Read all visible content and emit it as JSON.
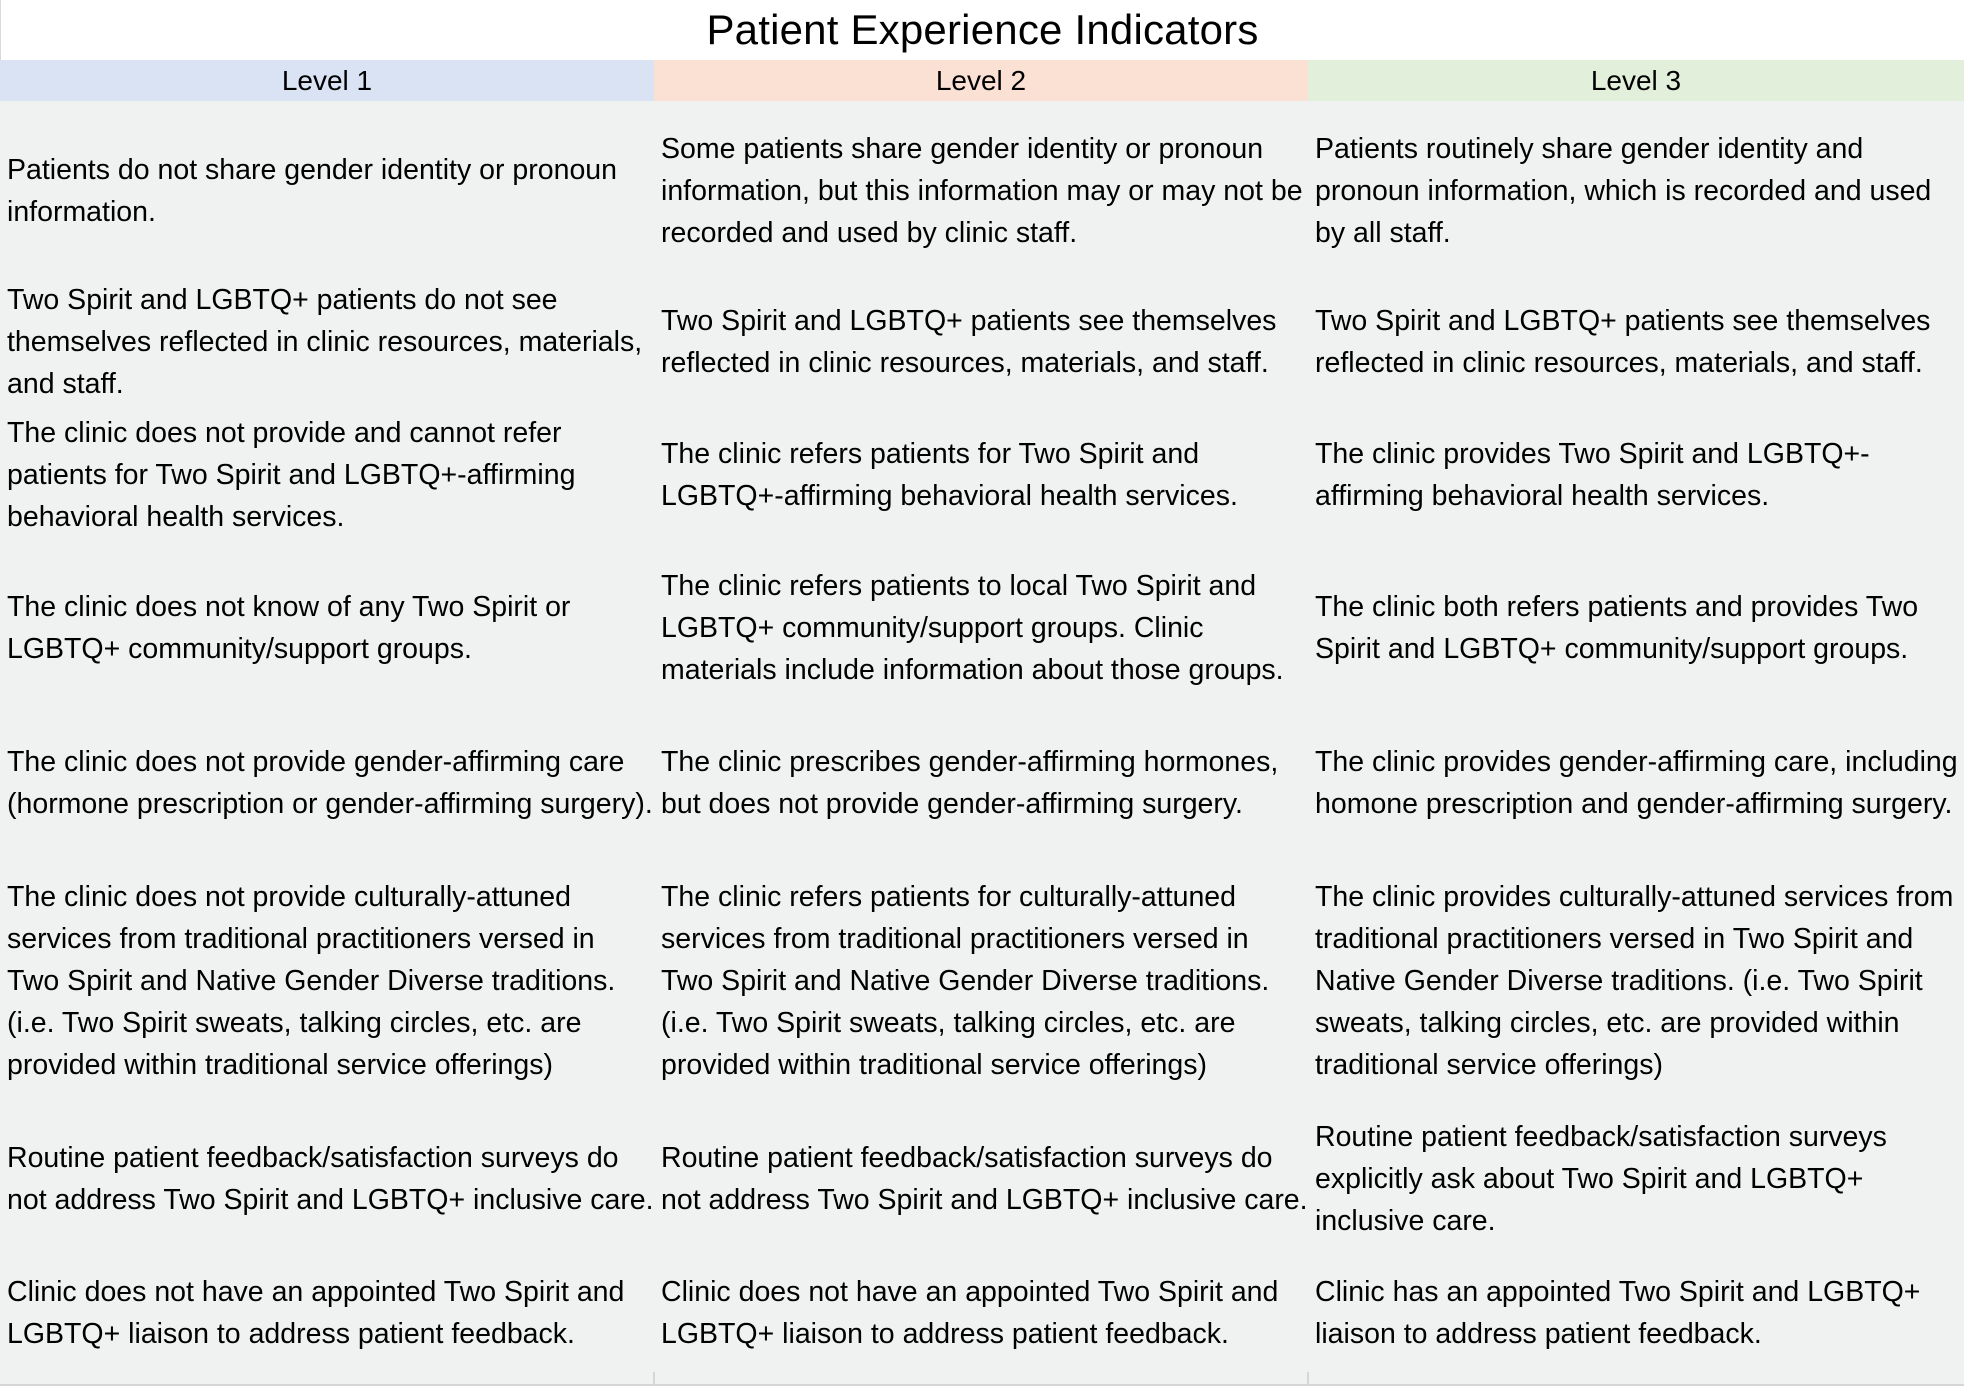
{
  "title": "Patient Experience Indicators",
  "headers": [
    {
      "label": "Level 1",
      "color": "#dae3f3"
    },
    {
      "label": "Level 2",
      "color": "#fbe0d4"
    },
    {
      "label": "Level 3",
      "color": "#e2efda"
    }
  ],
  "rows": [
    {
      "level1": "Patients do not share gender identity or pronoun information.",
      "level2": "Some patients share gender identity or pronoun information, but this information may or may not be recorded and used by clinic staff.",
      "level3": "Patients routinely share gender identity and pronoun information, which is recorded and used by all staff."
    },
    {
      "level1": "Two Spirit and LGBTQ+ patients do not see themselves reflected in clinic resources, materials, and staff.",
      "level2": "Two Spirit and LGBTQ+ patients see themselves reflected in clinic resources, materials, and staff.",
      "level3": "Two Spirit and LGBTQ+ patients see themselves reflected in clinic resources, materials, and staff."
    },
    {
      "level1": "The clinic does not provide and cannot refer patients for Two Spirit and LGBTQ+-affirming behavioral health services.",
      "level2": "The clinic refers patients for Two Spirit and LGBTQ+-affirming behavioral health services.",
      "level3": "The clinic provides Two Spirit and LGBTQ+-affirming behavioral health services."
    },
    {
      "level1": "The clinic does not know of any Two Spirit or LGBTQ+ community/support groups.",
      "level2": "The clinic refers patients to local Two Spirit and LGBTQ+ community/support groups. Clinic materials include information about those groups.",
      "level3": "The clinic both refers patients and provides Two Spirit and LGBTQ+ community/support groups."
    },
    {
      "level1": "The clinic does not provide gender-affirming care (hormone prescription or gender-affirming surgery).",
      "level2": "The clinic prescribes gender-affirming hormones, but does not provide gender-affirming surgery.",
      "level3": "The clinic provides gender-affirming care, including homone prescription and gender-affirming surgery."
    },
    {
      "level1": "The clinic does not provide culturally-attuned services from traditional practitioners versed in Two Spirit and Native Gender Diverse traditions. (i.e. Two Spirit sweats, talking circles, etc. are provided within traditional service offerings)",
      "level2": "The clinic refers patients for culturally-attuned services from traditional practitioners versed in Two Spirit and Native Gender Diverse traditions. (i.e. Two Spirit sweats, talking circles, etc. are provided within traditional service offerings)",
      "level3": "The clinic provides culturally-attuned services from traditional practitioners versed in Two Spirit and Native Gender Diverse traditions. (i.e. Two Spirit sweats, talking circles, etc. are provided within traditional service offerings)"
    },
    {
      "level1": "Routine patient feedback/satisfaction surveys do not address Two Spirit and LGBTQ+ inclusive care.",
      "level2": "Routine patient feedback/satisfaction surveys do not address Two Spirit and LGBTQ+ inclusive care.",
      "level3": "Routine patient feedback/satisfaction surveys explicitly ask about Two Spirit and LGBTQ+ inclusive care."
    },
    {
      "level1": "Clinic does not have an appointed Two Spirit and LGBTQ+ liaison to address patient feedback.",
      "level2": "Clinic does not have an appointed Two Spirit and LGBTQ+ liaison to address patient feedback.",
      "level3": "Clinic has an appointed Two Spirit and LGBTQ+ liaison to address patient feedback."
    }
  ]
}
